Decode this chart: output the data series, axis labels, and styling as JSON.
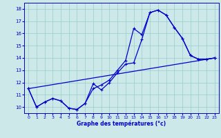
{
  "xlabel": "Graphe des températures (°c)",
  "bg_color": "#cce8e8",
  "line_color": "#0000cc",
  "grid_color": "#99cccc",
  "xlim": [
    -0.5,
    23.5
  ],
  "ylim": [
    9.5,
    18.5
  ],
  "xticks": [
    0,
    1,
    2,
    3,
    4,
    5,
    6,
    7,
    8,
    9,
    10,
    11,
    12,
    13,
    14,
    15,
    16,
    17,
    18,
    19,
    20,
    21,
    22,
    23
  ],
  "yticks": [
    10,
    11,
    12,
    13,
    14,
    15,
    16,
    17,
    18
  ],
  "line1_x": [
    0,
    1,
    2,
    3,
    4,
    5,
    6,
    7,
    8,
    9,
    10,
    11,
    12,
    13,
    14,
    15,
    16,
    17,
    18,
    19,
    20,
    21,
    22,
    23
  ],
  "line1_y": [
    11.5,
    10.0,
    10.4,
    10.7,
    10.5,
    9.9,
    9.8,
    10.3,
    11.9,
    11.4,
    12.0,
    12.8,
    13.5,
    13.6,
    15.5,
    17.7,
    17.9,
    17.5,
    16.5,
    15.6,
    14.2,
    13.9,
    13.9,
    14.0
  ],
  "line2_x": [
    0,
    1,
    2,
    3,
    4,
    5,
    6,
    7,
    8,
    9,
    10,
    11,
    12,
    13,
    14,
    15,
    16,
    17,
    18,
    19,
    20,
    21,
    22,
    23
  ],
  "line2_y": [
    11.5,
    10.0,
    10.4,
    10.7,
    10.5,
    9.9,
    9.8,
    10.3,
    11.5,
    11.8,
    12.2,
    13.0,
    13.8,
    16.4,
    15.9,
    17.7,
    17.9,
    17.5,
    16.5,
    15.6,
    14.2,
    13.9,
    13.9,
    14.0
  ],
  "line3_x": [
    0,
    23
  ],
  "line3_y": [
    11.5,
    14.0
  ]
}
